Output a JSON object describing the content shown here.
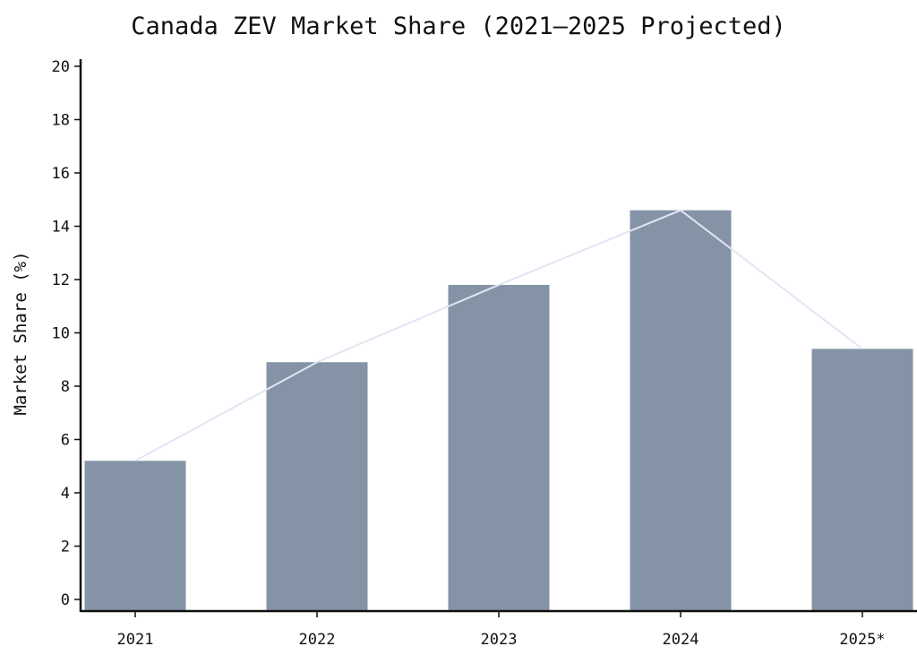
{
  "chart_data": {
    "type": "bar",
    "title": "Canada ZEV Market Share (2021–2025 Projected)",
    "xlabel": "",
    "ylabel": "Market Share (%)",
    "categories": [
      "2021",
      "2022",
      "2023",
      "2024",
      "2025*"
    ],
    "values": [
      5.2,
      8.9,
      11.8,
      14.6,
      9.4
    ],
    "ylim": [
      0,
      20
    ],
    "yticks": [
      0,
      2,
      4,
      6,
      8,
      10,
      12,
      14,
      16,
      18,
      20
    ],
    "grid": false,
    "overlay_line": true,
    "colors": {
      "bar": "#8593a6",
      "line": "#e3e5f5",
      "axis": "#111111"
    }
  }
}
